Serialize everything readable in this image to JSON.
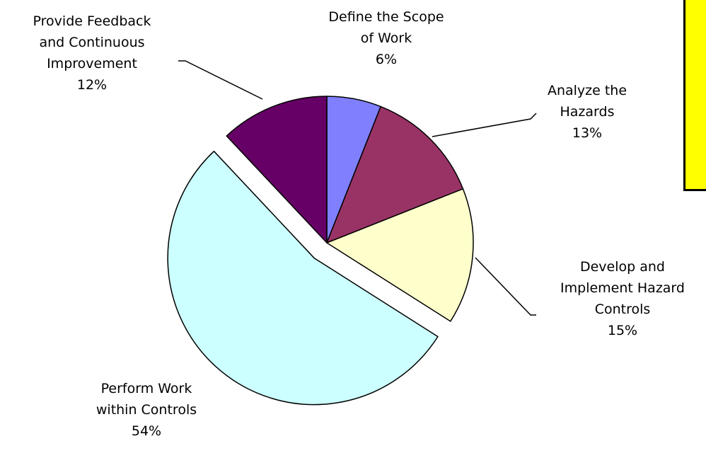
{
  "chart_data": {
    "type": "pie",
    "slices": [
      {
        "name": "Define the Scope of Work",
        "value": 6,
        "lines": [
          "Define the Scope",
          "of Work",
          "6%"
        ],
        "color": "#8080ff",
        "exploded": false
      },
      {
        "name": "Analyze the Hazards",
        "value": 13,
        "lines": [
          "Analyze the",
          "Hazards",
          "13%"
        ],
        "color": "#993366",
        "exploded": false
      },
      {
        "name": "Develop and Implement Hazard Controls",
        "value": 15,
        "lines": [
          "Develop and",
          "Implement Hazard",
          "Controls",
          "15%"
        ],
        "color": "#ffffcc",
        "exploded": false
      },
      {
        "name": "Perform Work within Controls",
        "value": 54,
        "lines": [
          "Perform Work",
          "within Controls",
          "54%"
        ],
        "color": "#ccffff",
        "exploded": true
      },
      {
        "name": "Provide Feedback and Continuous Improvement",
        "value": 12,
        "lines": [
          "Provide Feedback",
          "and Continuous",
          "Improvement",
          "12%"
        ],
        "color": "#660066",
        "exploded": false
      }
    ],
    "start_angle": "12 o'clock",
    "direction": "clockwise",
    "legend": "none",
    "title": ""
  },
  "note_box": {
    "color": "#ffff00"
  }
}
